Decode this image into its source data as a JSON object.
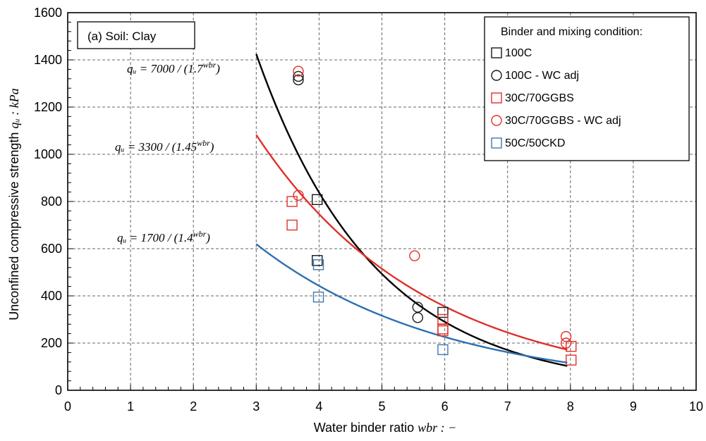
{
  "chart_data": {
    "type": "scatter",
    "panel_label": "(a) Soil: Clay",
    "xlabel": "Water binder ratio",
    "xlabel_math": "wbr : −",
    "ylabel": "Unconfined compressive strength",
    "ylabel_math": "qᵤ : kPa",
    "xlim": [
      0,
      10
    ],
    "ylim": [
      0,
      1600
    ],
    "x_ticks": [
      "0",
      "1",
      "2",
      "3",
      "4",
      "5",
      "6",
      "7",
      "8",
      "9",
      "10"
    ],
    "y_ticks": [
      "0",
      "200",
      "400",
      "600",
      "800",
      "1000",
      "1200",
      "1400",
      "1600"
    ],
    "grid": "dashed",
    "legend_title": "Binder and mixing condition:",
    "legend_position": "top-right",
    "series": [
      {
        "name": "100C",
        "marker": "square",
        "color": "#1a1a1a",
        "points": [
          [
            3.97,
            808
          ],
          [
            3.97,
            550
          ],
          [
            5.97,
            330
          ]
        ]
      },
      {
        "name": "100C - WC adj",
        "marker": "circle",
        "color": "#1a1a1a",
        "points": [
          [
            3.67,
            1330
          ],
          [
            3.67,
            1315
          ],
          [
            5.57,
            352
          ],
          [
            5.57,
            308
          ]
        ]
      },
      {
        "name": "30C/70GGBS",
        "marker": "square",
        "color": "#e0302a",
        "points": [
          [
            3.57,
            800
          ],
          [
            3.57,
            700
          ],
          [
            5.97,
            300
          ],
          [
            5.97,
            260
          ],
          [
            5.97,
            252
          ],
          [
            8.01,
            186
          ],
          [
            8.01,
            128
          ]
        ]
      },
      {
        "name": "30C/70GGBS - WC adj",
        "marker": "circle",
        "color": "#e0302a",
        "points": [
          [
            3.67,
            1352
          ],
          [
            3.67,
            826
          ],
          [
            5.52,
            570
          ],
          [
            7.93,
            228
          ],
          [
            7.93,
            200
          ]
        ]
      },
      {
        "name": "50C/50CKD",
        "marker": "square",
        "color": "#3a78b8",
        "points": [
          [
            3.99,
            532
          ],
          [
            3.99,
            395
          ],
          [
            5.97,
            172
          ]
        ]
      }
    ],
    "fits": [
      {
        "label": "qᵤ = 7000 / (1.7",
        "exp": "wbr",
        "close": ")",
        "a": 7000,
        "b": 1.7,
        "x_range": [
          3,
          7.95
        ],
        "color": "#000000"
      },
      {
        "label": "qᵤ = 3300 / (1.45",
        "exp": "wbr",
        "close": ")",
        "a": 3300,
        "b": 1.45,
        "x_range": [
          3,
          7.95
        ],
        "color": "#e0302a"
      },
      {
        "label": "qᵤ = 1700 / (1.4",
        "exp": "wbr",
        "close": ")",
        "a": 1700,
        "b": 1.4,
        "x_range": [
          3,
          7.95
        ],
        "color": "#2e6fb0"
      }
    ]
  }
}
